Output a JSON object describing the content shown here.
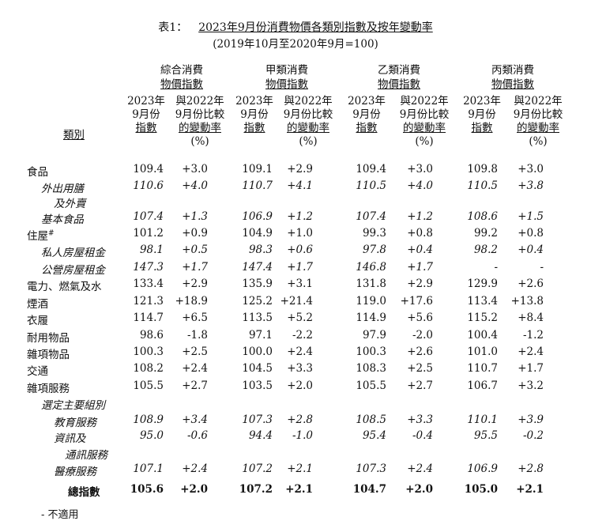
{
  "title": {
    "label": "表1：",
    "text": "2023年9月份消費物價各類別指數及按年變動率",
    "note": "(2019年10月至2020年9月=100)"
  },
  "group_headers": [
    {
      "l1": "綜合消費",
      "l2": "物價指數"
    },
    {
      "l1": "甲類消費",
      "l2": "物價指數"
    },
    {
      "l1": "乙類消費",
      "l2": "物價指數"
    },
    {
      "l1": "丙類消費",
      "l2": "物價指數"
    }
  ],
  "col_headers": {
    "index": {
      "l1": "2023年",
      "l2": "9月份",
      "l3": "指數"
    },
    "change": {
      "l1": "與2022年",
      "l2": "9月份比較",
      "l3": "的變動率",
      "l4": "(%)"
    }
  },
  "category_header": "類別",
  "rows": [
    {
      "label": "食品",
      "v": [
        "109.4",
        "+3.0",
        "109.1",
        "+2.9",
        "109.4",
        "+3.0",
        "109.8",
        "+3.0"
      ]
    },
    {
      "label": "外出用膳",
      "v": [
        "110.6",
        "+4.0",
        "110.7",
        "+4.1",
        "110.5",
        "+4.0",
        "110.5",
        "+3.8"
      ]
    },
    {
      "label": "及外賣",
      "v": [
        "",
        "",
        "",
        "",
        "",
        "",
        "",
        ""
      ]
    },
    {
      "label": "基本食品",
      "v": [
        "107.4",
        "+1.3",
        "106.9",
        "+1.2",
        "107.4",
        "+1.2",
        "108.6",
        "+1.5"
      ]
    },
    {
      "label": "住屋",
      "sup": "#",
      "v": [
        "101.2",
        "+0.9",
        "104.9",
        "+1.0",
        "99.3",
        "+0.8",
        "99.2",
        "+0.8"
      ]
    },
    {
      "label": "私人房屋租金",
      "v": [
        "98.1",
        "+0.5",
        "98.3",
        "+0.6",
        "97.8",
        "+0.4",
        "98.2",
        "+0.4"
      ]
    },
    {
      "label": "公營房屋租金",
      "v": [
        "147.3",
        "+1.7",
        "147.4",
        "+1.7",
        "146.8",
        "+1.7",
        "-",
        "-"
      ]
    },
    {
      "label": "電力、燃氣及水",
      "v": [
        "133.4",
        "+2.9",
        "135.9",
        "+3.1",
        "131.8",
        "+2.9",
        "129.9",
        "+2.6"
      ]
    },
    {
      "label": "煙酒",
      "v": [
        "121.3",
        "+18.9",
        "125.2",
        "+21.4",
        "119.0",
        "+17.6",
        "113.4",
        "+13.8"
      ]
    },
    {
      "label": "衣履",
      "v": [
        "114.7",
        "+6.5",
        "113.5",
        "+5.2",
        "114.9",
        "+5.6",
        "115.2",
        "+8.4"
      ]
    },
    {
      "label": "耐用物品",
      "v": [
        "98.6",
        "-1.8",
        "97.1",
        "-2.2",
        "97.9",
        "-2.0",
        "100.4",
        "-1.2"
      ]
    },
    {
      "label": "雜項物品",
      "v": [
        "100.3",
        "+2.5",
        "100.0",
        "+2.4",
        "100.3",
        "+2.6",
        "101.0",
        "+2.4"
      ]
    },
    {
      "label": "交通",
      "v": [
        "108.2",
        "+2.4",
        "104.5",
        "+3.3",
        "108.3",
        "+2.5",
        "110.7",
        "+1.7"
      ]
    },
    {
      "label": "雜項服務",
      "v": [
        "105.5",
        "+2.7",
        "103.5",
        "+2.0",
        "105.5",
        "+2.7",
        "106.7",
        "+3.2"
      ]
    },
    {
      "label": "選定主要組別",
      "v": [
        "",
        "",
        "",
        "",
        "",
        "",
        "",
        ""
      ]
    },
    {
      "label": "教育服務",
      "v": [
        "108.9",
        "+3.4",
        "107.3",
        "+2.8",
        "108.5",
        "+3.3",
        "110.1",
        "+3.9"
      ]
    },
    {
      "label": "資訊及",
      "v": [
        "95.0",
        "-0.6",
        "94.4",
        "-1.0",
        "95.4",
        "-0.4",
        "95.5",
        "-0.2"
      ]
    },
    {
      "label": "通訊服務",
      "v": [
        "",
        "",
        "",
        "",
        "",
        "",
        "",
        ""
      ]
    },
    {
      "label": "醫療服務",
      "v": [
        "107.1",
        "+2.4",
        "107.2",
        "+2.1",
        "107.3",
        "+2.4",
        "106.9",
        "+2.8"
      ]
    },
    {
      "label": "總指數",
      "v": [
        "105.6",
        "+2.0",
        "107.2",
        "+2.1",
        "104.7",
        "+2.0",
        "105.0",
        "+2.1"
      ]
    }
  ],
  "footnote": "-  不適用"
}
